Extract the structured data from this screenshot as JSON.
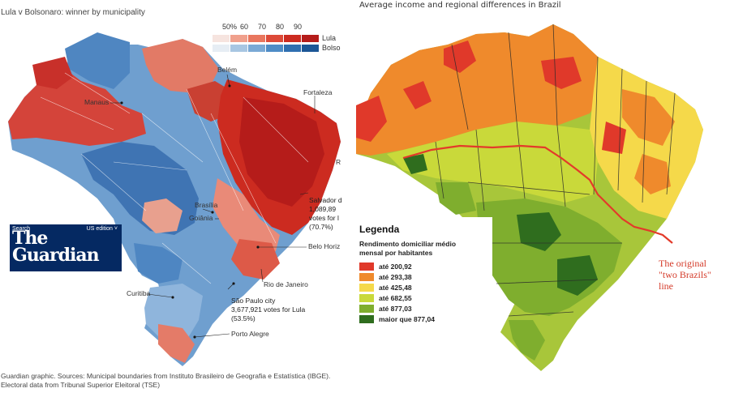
{
  "left_map": {
    "title": "Lula v Bolsonaro: winner by municipality",
    "legend": {
      "ticks": [
        "50%",
        "60",
        "70",
        "80",
        "90"
      ],
      "lula_label": "Lula",
      "bolso_label": "Bolso",
      "lula_colors": [
        "#f6e4df",
        "#f0a08c",
        "#e9765e",
        "#dd4a38",
        "#cc2b20",
        "#b51c1a"
      ],
      "bolso_colors": [
        "#e6edf4",
        "#a8c6e2",
        "#7aa9d5",
        "#4e8cc6",
        "#2f6fb0",
        "#1c5696"
      ]
    },
    "cities": {
      "manaus": "Manaus",
      "belem": "Belém",
      "fortaleza": "Fortaleza",
      "recife": "R",
      "salvador": "Salvador d",
      "brasilia": "Brasília",
      "goiania": "Goiânia",
      "belo_horizonte": "Belo Horiz",
      "rio": "Rio de Janeiro",
      "curitiba": "Curitiba",
      "sao_paulo": "São Paulo city",
      "porto_alegre": "Porto Alegre"
    },
    "annotations": {
      "salvador_votes_1": "1,089,89",
      "salvador_votes_2": "votes for l",
      "salvador_votes_3": "(70.7%)",
      "sp_votes": "3,677,921 votes for Lula",
      "sp_pct": "(53.5%)"
    },
    "guardian": {
      "search": "Search",
      "edition": "US edition ˅",
      "brand_line1": "The",
      "brand_line2": "Guardian"
    },
    "footer": [
      "Guardian graphic. Sources: Municipal boundaries from Instituto Brasileiro de Geografia e Estatística (IBGE).",
      "Electoral data from Tribunal Superior Eleitoral (TSE)"
    ]
  },
  "right_map": {
    "title": "Average income and regional differences in Brazil",
    "legend_title": "Legenda",
    "legend_subtitle_1": "Rendimento domiciliar médio",
    "legend_subtitle_2": "mensal por habitantes",
    "legend_items": [
      {
        "label": "até 200,92",
        "color": "#e0392a"
      },
      {
        "label": "até 293,38",
        "color": "#ef8a2c"
      },
      {
        "label": "até 425,48",
        "color": "#f5d94a"
      },
      {
        "label": "até 682,55",
        "color": "#c9d93a"
      },
      {
        "label": "até 877,03",
        "color": "#7fae2e"
      },
      {
        "label": "maior que 877,04",
        "color": "#2f6d1e"
      }
    ],
    "line_note_1": "The original",
    "line_note_2": "\"two Brazils\"",
    "line_note_3": "line",
    "line_color": "#e33a2a"
  }
}
